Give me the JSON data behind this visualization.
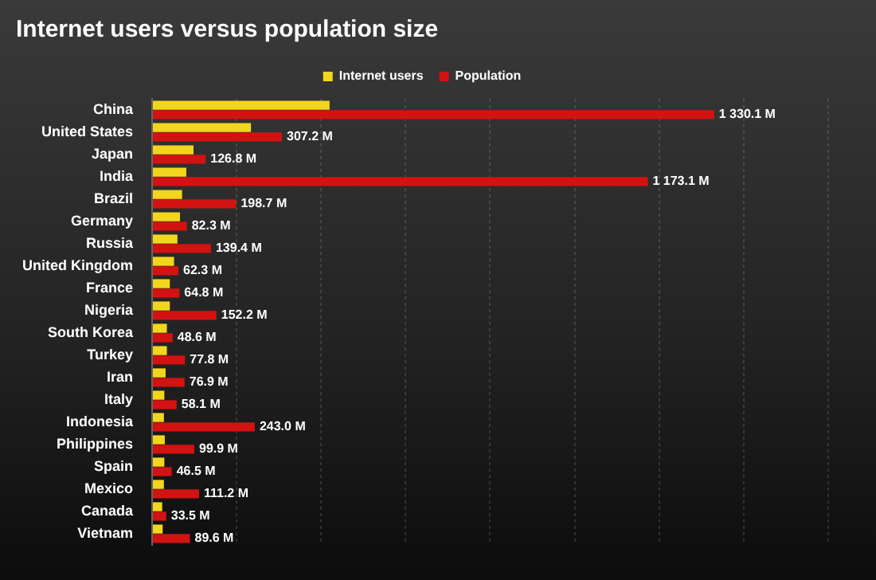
{
  "chart_data": {
    "type": "bar",
    "orientation": "horizontal",
    "title": "Internet users versus population size",
    "categories": [
      "China",
      "United States",
      "Japan",
      "India",
      "Brazil",
      "Germany",
      "Russia",
      "United Kingdom",
      "France",
      "Nigeria",
      "South Korea",
      "Turkey",
      "Iran",
      "Italy",
      "Indonesia",
      "Philippines",
      "Spain",
      "Mexico",
      "Canada",
      "Vietnam"
    ],
    "series": [
      {
        "name": "Internet users",
        "color": "#f2d61e",
        "values": [
          420,
          234,
          98,
          81,
          71,
          66,
          60,
          52,
          42,
          42,
          35,
          35,
          32,
          29,
          28,
          30,
          29,
          28,
          24,
          25
        ]
      },
      {
        "name": "Population",
        "color": "#d31212",
        "values": [
          1330.1,
          307.2,
          126.8,
          1173.1,
          198.7,
          82.3,
          139.4,
          62.3,
          64.8,
          152.2,
          48.6,
          77.8,
          76.9,
          58.1,
          243.0,
          99.9,
          46.5,
          111.2,
          33.5,
          89.6
        ],
        "value_labels": [
          "1 330.1 M",
          "307.2 M",
          "126.8 M",
          "1 173.1 M",
          "198.7 M",
          "82.3 M",
          "139.4 M",
          "62.3 M",
          "64.8 M",
          "152.2 M",
          "48.6 M",
          "77.8 M",
          "76.9 M",
          "58.1 M",
          "243.0 M",
          "99.9 M",
          "46.5 M",
          "111.2 M",
          "33.5 M",
          "89.6 M"
        ]
      }
    ],
    "xlim": [
      0,
      1600
    ],
    "xticks": [
      {
        "value": 0,
        "label": null
      },
      {
        "value": 200,
        "label": null
      },
      {
        "value": 400,
        "label": null
      },
      {
        "value": 600,
        "label": null
      },
      {
        "value": 800,
        "label": null
      },
      {
        "value": 1000,
        "label": null
      },
      {
        "value": 1200,
        "label": null
      },
      {
        "value": 1400,
        "label": null
      },
      {
        "value": 1600,
        "label": null
      }
    ],
    "grid": "x",
    "legend": "top",
    "tick_labels": "y"
  }
}
